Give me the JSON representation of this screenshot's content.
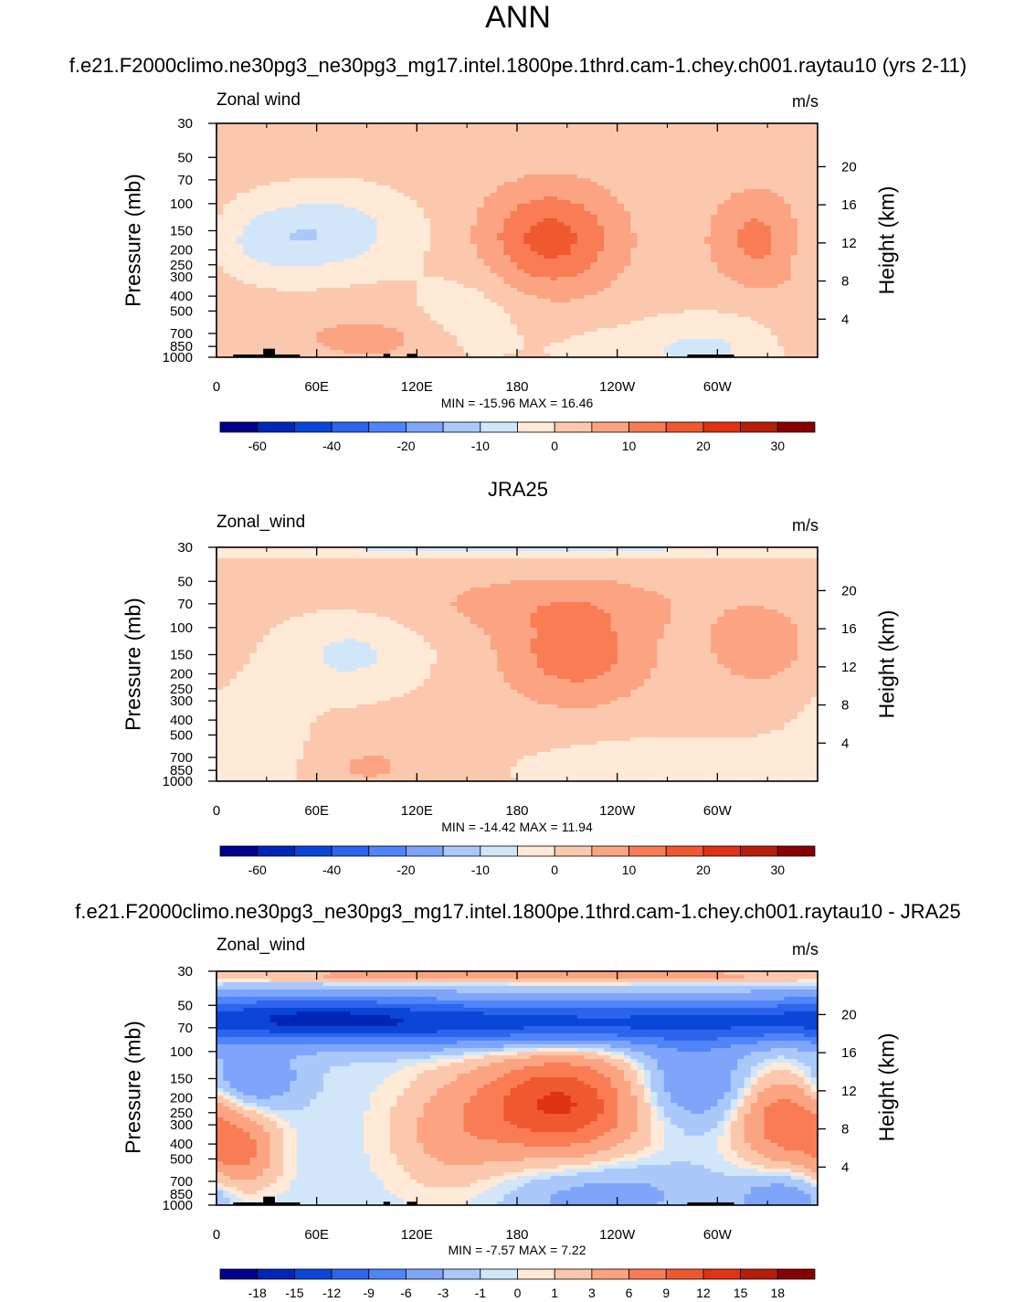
{
  "title": "ANN",
  "panels": [
    {
      "title": "f.e21.F2000climo.ne30pg3_ne30pg3_mg17.intel.1800pe.1thrd.cam-1.chey.ch001.raytau10 (yrs 2-11)",
      "var_label": "Zonal wind",
      "units": "m/s",
      "ylabel": "Pressure (mb)",
      "ylabel_right": "Height (km)",
      "minmax": "MIN = -15.96  MAX =  16.46"
    },
    {
      "title": "JRA25",
      "var_label": "Zonal_wind",
      "units": "m/s",
      "ylabel": "Pressure (mb)",
      "ylabel_right": "Height (km)",
      "minmax": "MIN = -14.42  MAX =  11.94"
    },
    {
      "title": "f.e21.F2000climo.ne30pg3_ne30pg3_mg17.intel.1800pe.1thrd.cam-1.chey.ch001.raytau10 - JRA25",
      "var_label": "Zonal_wind",
      "units": "m/s",
      "ylabel": "Pressure (mb)",
      "ylabel_right": "Height (km)",
      "minmax": "MIN =  -7.57  MAX =   7.22"
    }
  ],
  "chart_data": [
    {
      "type": "heatmap",
      "title": "f.e21.F2000climo.ne30pg3_ne30pg3_mg17.intel.1800pe.1thrd.cam-1.chey.ch001.raytau10 (yrs 2-11)",
      "variable": "Zonal wind",
      "units": "m/s",
      "x_ticks": [
        "0",
        "60E",
        "120E",
        "180",
        "120W",
        "60W"
      ],
      "x_range": [
        0,
        360
      ],
      "y_ticks_pressure": [
        "30",
        "50",
        "70",
        "100",
        "150",
        "200",
        "250",
        "300",
        "400",
        "500",
        "700",
        "850",
        "1000"
      ],
      "y_ticks_height": [
        "20",
        "16",
        "12",
        "8",
        "4"
      ],
      "y_scale": "log",
      "min": -15.96,
      "max": 16.46,
      "colorbar_labels": [
        "-60",
        "-40",
        "-20",
        "-10",
        "0",
        "10",
        "20",
        "30"
      ],
      "features": [
        {
          "lon": 355,
          "p": 500,
          "value": 2
        },
        {
          "lon": 70,
          "p": 150,
          "value": -10
        },
        {
          "lon": 200,
          "p": 150,
          "value": 14
        },
        {
          "lon": 325,
          "p": 170,
          "value": 8
        },
        {
          "lon": 150,
          "p": 500,
          "value": 0
        }
      ]
    },
    {
      "type": "heatmap",
      "title": "JRA25",
      "variable": "Zonal_wind",
      "units": "m/s",
      "x_ticks": [
        "0",
        "60E",
        "120E",
        "180",
        "120W",
        "60W"
      ],
      "x_range": [
        0,
        360
      ],
      "y_ticks_pressure": [
        "30",
        "50",
        "70",
        "100",
        "150",
        "200",
        "250",
        "300",
        "400",
        "500",
        "700",
        "850",
        "1000"
      ],
      "y_ticks_height": [
        "20",
        "16",
        "12",
        "8",
        "4"
      ],
      "y_scale": "log",
      "min": -14.42,
      "max": 11.94,
      "colorbar_labels": [
        "-60",
        "-40",
        "-20",
        "-10",
        "0",
        "10",
        "20",
        "30"
      ],
      "features": [
        {
          "lon": 80,
          "p": 150,
          "value": -8
        },
        {
          "lon": 215,
          "p": 150,
          "value": 10
        },
        {
          "lon": 325,
          "p": 130,
          "value": 7
        },
        {
          "lon": 280,
          "p": 800,
          "value": -3
        }
      ]
    },
    {
      "type": "heatmap",
      "title": "f.e21.F2000climo.ne30pg3_ne30pg3_mg17.intel.1800pe.1thrd.cam-1.chey.ch001.raytau10 - JRA25",
      "variable": "Zonal_wind",
      "units": "m/s",
      "x_ticks": [
        "0",
        "60E",
        "120E",
        "180",
        "120W",
        "60W"
      ],
      "x_range": [
        0,
        360
      ],
      "y_ticks_pressure": [
        "30",
        "50",
        "70",
        "100",
        "150",
        "200",
        "250",
        "300",
        "400",
        "500",
        "700",
        "850",
        "1000"
      ],
      "y_ticks_height": [
        "20",
        "16",
        "12",
        "8",
        "4"
      ],
      "y_scale": "log",
      "min": -7.57,
      "max": 7.22,
      "colorbar_labels": [
        "-18",
        "-15",
        "-12",
        "-9",
        "-6",
        "-3",
        "-1",
        "0",
        "1",
        "3",
        "6",
        "9",
        "12",
        "15",
        "18"
      ],
      "features": [
        {
          "lon": 210,
          "p": 60,
          "value": -7
        },
        {
          "lon": 20,
          "p": 150,
          "value": -6
        },
        {
          "lon": 205,
          "p": 220,
          "value": 7
        },
        {
          "lon": 340,
          "p": 280,
          "value": 5
        },
        {
          "lon": 15,
          "p": 450,
          "value": 4
        }
      ]
    }
  ],
  "colorbar_colors": [
    "#00008c",
    "#0026b8",
    "#0a46d8",
    "#2d64ee",
    "#4f84fa",
    "#7ea5fa",
    "#aac8fa",
    "#d2e6fa",
    "#ffe9d7",
    "#fcc8ad",
    "#fca482",
    "#f97c54",
    "#f0582f",
    "#e03214",
    "#b71e0a",
    "#8a0000"
  ]
}
